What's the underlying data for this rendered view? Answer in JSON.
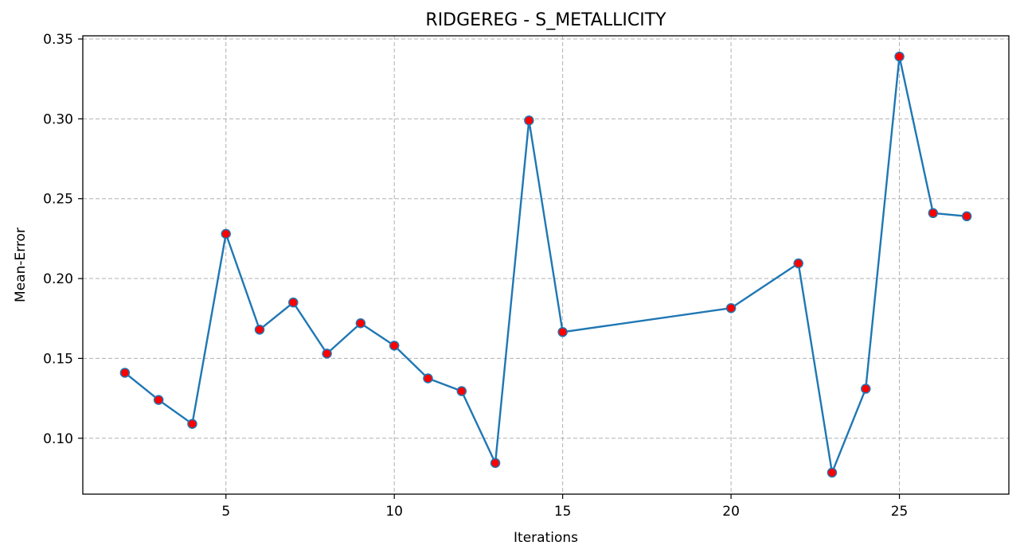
{
  "chart_data": {
    "type": "line",
    "title": "RIDGEREG - S_METALLICITY",
    "xlabel": "Iterations",
    "ylabel": "Mean-Error",
    "x": [
      2,
      3,
      4,
      5,
      6,
      7,
      8,
      9,
      10,
      11,
      12,
      13,
      14,
      15,
      20,
      22,
      23,
      24,
      25,
      26,
      27
    ],
    "series": [
      {
        "values": [
          0.141,
          0.124,
          0.109,
          0.228,
          0.168,
          0.185,
          0.153,
          0.172,
          0.158,
          0.1375,
          0.1295,
          0.0845,
          0.299,
          0.1665,
          0.1815,
          0.2095,
          0.0785,
          0.131,
          0.339,
          0.241,
          0.239
        ],
        "line_color": "#1f77b4",
        "marker_fill": "#ff0000",
        "marker_edge": "#1f77b4"
      }
    ],
    "xlim": [
      0.75,
      28.25
    ],
    "ylim": [
      0.065,
      0.352
    ],
    "xticks": [
      5,
      10,
      15,
      20,
      25
    ],
    "yticks": [
      0.1,
      0.15,
      0.2,
      0.25,
      0.3,
      0.35
    ],
    "ytick_labels": [
      "0.10",
      "0.15",
      "0.20",
      "0.25",
      "0.30",
      "0.35"
    ],
    "grid": true,
    "legend": "none"
  }
}
